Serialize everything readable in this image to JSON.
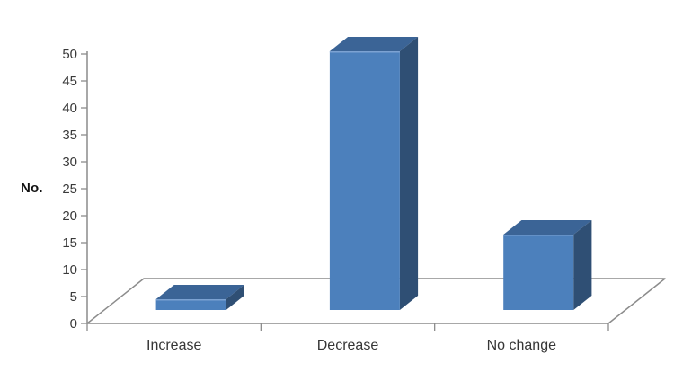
{
  "chart_data": {
    "type": "bar",
    "variant": "3d-column",
    "title": "",
    "ylabel": "No.",
    "xlabel": "",
    "categories": [
      "Increase",
      "Decrease",
      "No change"
    ],
    "values": [
      2,
      48,
      14
    ],
    "ylim": [
      0,
      50
    ],
    "ytick_step": 5,
    "grid": false,
    "legend": "none",
    "colors": {
      "bar_front": "#4C80BC",
      "bar_top": "#3B6496",
      "bar_side": "#2F4F74",
      "bar_top_edge_highlight": "#7CA2D2",
      "axis_line": "#8C8C8C",
      "tick_label": "#3A3A3A",
      "category_label": "#363636",
      "axis_title": "#111111",
      "background": "#FFFFFF"
    }
  }
}
